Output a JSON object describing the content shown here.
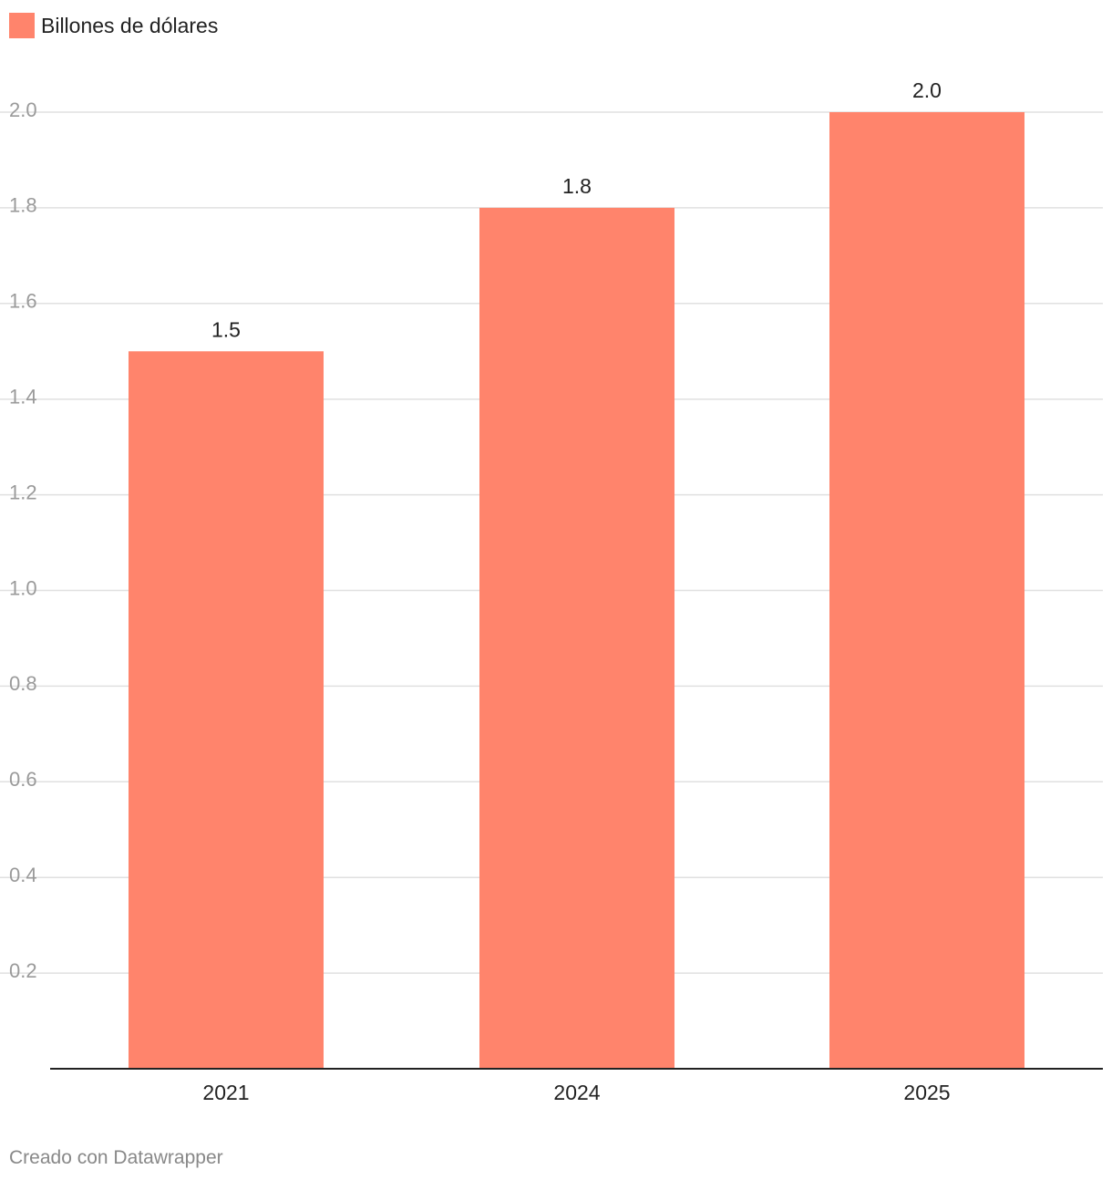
{
  "legend": {
    "label": "Billones de dólares"
  },
  "footer": {
    "credit": "Creado con Datawrapper"
  },
  "colors": {
    "bar": "#ff846c",
    "grid": "#e0e0e0",
    "axis": "#222222",
    "tick_label": "#9a9a9a",
    "category_label": "#222222",
    "value_label": "#222222"
  },
  "chart_data": {
    "type": "bar",
    "categories": [
      "2021",
      "2024",
      "2025"
    ],
    "values": [
      1.5,
      1.8,
      2.0
    ],
    "value_labels": [
      "1.5",
      "1.8",
      "2.0"
    ],
    "series": [
      {
        "name": "Billones de dólares",
        "values": [
          1.5,
          1.8,
          2.0
        ]
      }
    ],
    "title": "",
    "xlabel": "",
    "ylabel": "",
    "ylim": [
      0,
      2.0
    ],
    "yticks": [
      0.2,
      0.4,
      0.6,
      0.8,
      1.0,
      1.2,
      1.4,
      1.6,
      1.8,
      2.0
    ],
    "ytick_labels": [
      "0.2",
      "0.4",
      "0.6",
      "0.8",
      "1.0",
      "1.2",
      "1.4",
      "1.6",
      "1.8",
      "2.0"
    ],
    "grid": true,
    "legend_position": "top-left"
  }
}
